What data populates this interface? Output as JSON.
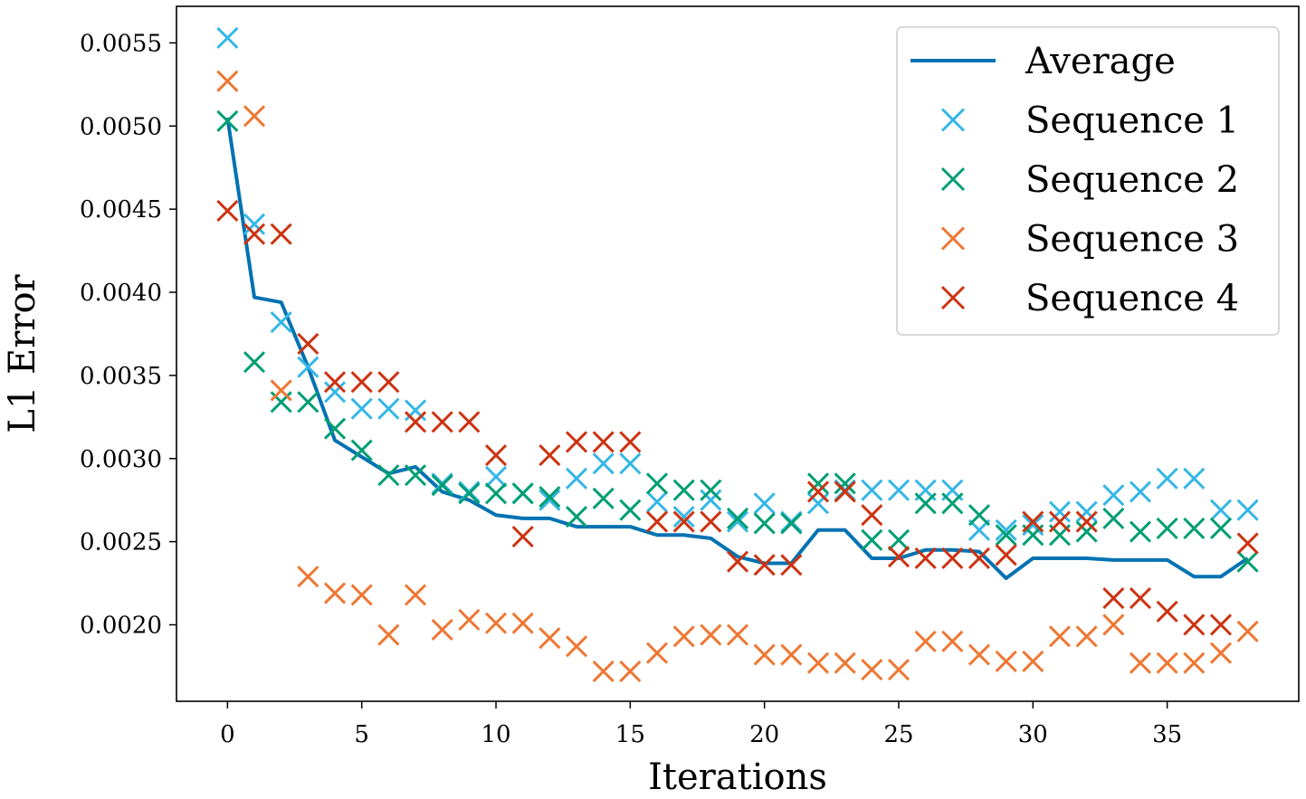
{
  "chart_data": {
    "type": "line",
    "title": "",
    "xlabel": "Iterations",
    "ylabel": "L1 Error",
    "xlim": [
      -1.9,
      39.9
    ],
    "ylim": [
      0.00154,
      0.00572
    ],
    "xticks": [
      0,
      5,
      10,
      15,
      20,
      25,
      30,
      35
    ],
    "xtick_labels": [
      "0",
      "5",
      "10",
      "15",
      "20",
      "25",
      "30",
      "35"
    ],
    "yticks": [
      0.002,
      0.0025,
      0.003,
      0.0035,
      0.004,
      0.0045,
      0.005,
      0.0055
    ],
    "ytick_labels": [
      "0.0020",
      "0.0025",
      "0.0030",
      "0.0035",
      "0.0040",
      "0.0045",
      "0.0050",
      "0.0055"
    ],
    "grid": false,
    "legend_position": "top-right",
    "series": [
      {
        "name": "Average",
        "kind": "line",
        "color": "#0072b2",
        "values": [
          0.00505,
          0.00397,
          0.00394,
          0.00355,
          0.00311,
          0.00301,
          0.00291,
          0.00295,
          0.0028,
          0.00275,
          0.00266,
          0.00264,
          0.00264,
          0.00259,
          0.00259,
          0.00259,
          0.00254,
          0.00254,
          0.00252,
          0.00241,
          0.00237,
          0.00237,
          0.00257,
          0.00257,
          0.0024,
          0.0024,
          0.00245,
          0.00245,
          0.00244,
          0.00228,
          0.0024,
          0.0024,
          0.0024,
          0.00239,
          0.00239,
          0.00239,
          0.00229,
          0.00229,
          0.0024
        ]
      },
      {
        "name": "Sequence 1",
        "kind": "scatter",
        "marker": "x",
        "color": "#35b7e6",
        "values": [
          0.00553,
          0.00441,
          0.00382,
          0.00355,
          0.0034,
          0.0033,
          0.0033,
          0.00329,
          0.00285,
          0.0028,
          0.00289,
          0.00279,
          0.00275,
          0.00288,
          0.00297,
          0.00297,
          0.00274,
          0.00265,
          0.00275,
          0.00262,
          0.00273,
          0.00262,
          0.00273,
          0.00281,
          0.00281,
          0.00281,
          0.00281,
          0.00281,
          0.00257,
          0.00257,
          0.0026,
          0.00268,
          0.00268,
          0.00278,
          0.0028,
          0.00288,
          0.00288,
          0.00269,
          0.00269
        ]
      },
      {
        "name": "Sequence 2",
        "kind": "scatter",
        "marker": "x",
        "color": "#009e73",
        "values": [
          0.00503,
          0.00358,
          0.00334,
          0.00334,
          0.00318,
          0.00305,
          0.0029,
          0.0029,
          0.00284,
          0.00279,
          0.00279,
          0.00279,
          0.00277,
          0.00265,
          0.00276,
          0.00269,
          0.00285,
          0.00281,
          0.00281,
          0.00264,
          0.00261,
          0.00261,
          0.00285,
          0.00285,
          0.00251,
          0.00251,
          0.00273,
          0.00273,
          0.00266,
          0.00254,
          0.00254,
          0.00254,
          0.00256,
          0.00264,
          0.00256,
          0.00258,
          0.00258,
          0.00258,
          0.00238
        ]
      },
      {
        "name": "Sequence 3",
        "kind": "scatter",
        "marker": "x",
        "color": "#ee7733",
        "values": [
          0.00527,
          0.00506,
          0.00341,
          0.00229,
          0.00219,
          0.00218,
          0.00194,
          0.00218,
          0.00197,
          0.00203,
          0.00201,
          0.00201,
          0.00192,
          0.00187,
          0.00172,
          0.00172,
          0.00183,
          0.00193,
          0.00194,
          0.00194,
          0.00182,
          0.00182,
          0.00177,
          0.00177,
          0.00173,
          0.00173,
          0.0019,
          0.0019,
          0.00182,
          0.00178,
          0.00178,
          0.00193,
          0.00193,
          0.002,
          0.00177,
          0.00177,
          0.00177,
          0.00183,
          0.00196
        ]
      },
      {
        "name": "Sequence 4",
        "kind": "scatter",
        "marker": "x",
        "color": "#cc3311",
        "values": [
          0.00449,
          0.00435,
          0.00435,
          0.00369,
          0.00346,
          0.00346,
          0.00346,
          0.00322,
          0.00322,
          0.00322,
          0.00302,
          0.00253,
          0.00302,
          0.0031,
          0.0031,
          0.0031,
          0.00262,
          0.00262,
          0.00262,
          0.00238,
          0.00236,
          0.00236,
          0.0028,
          0.0028,
          0.00266,
          0.00241,
          0.0024,
          0.0024,
          0.0024,
          0.00242,
          0.00262,
          0.00262,
          0.00262,
          0.00216,
          0.00216,
          0.00208,
          0.002,
          0.002,
          0.00249
        ]
      }
    ]
  }
}
